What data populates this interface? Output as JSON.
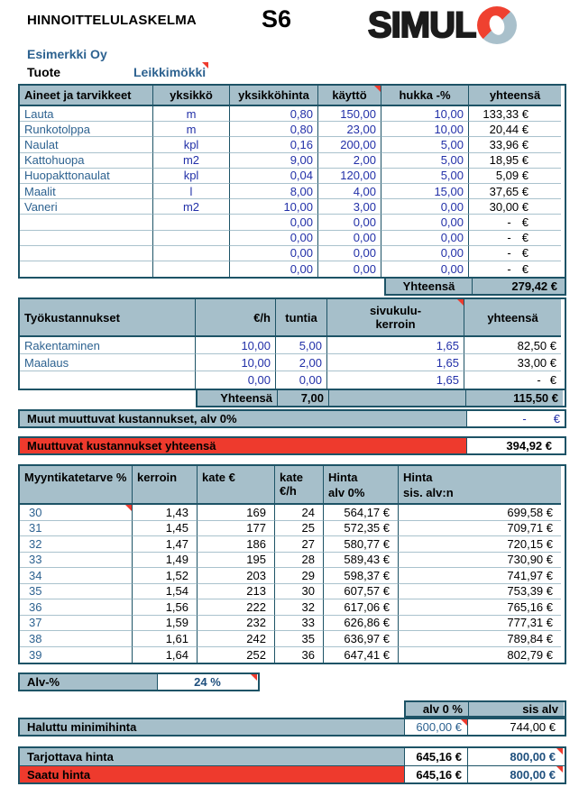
{
  "page": {
    "title": "HINNOITTELULASKELMA",
    "code": "S6"
  },
  "logo": {
    "text": "SIMUL"
  },
  "company": "Esimerkki Oy",
  "product": {
    "label": "Tuote",
    "value": "Leikkimökki"
  },
  "misc": {
    "dash": "-",
    "euro": "€"
  },
  "materials": {
    "headers": [
      "Aineet ja tarvikkeet",
      "yksikkö",
      "yksikköhinta",
      "käyttö",
      "hukka -%",
      "yhteensä"
    ],
    "rows": [
      {
        "name": "Lauta",
        "unit": "m",
        "price": "0,80",
        "usage": "150,00",
        "waste": "10,00",
        "total": "133,33 €"
      },
      {
        "name": "Runkotolppa",
        "unit": "m",
        "price": "0,80",
        "usage": "23,00",
        "waste": "10,00",
        "total": "20,44 €"
      },
      {
        "name": "Naulat",
        "unit": "kpl",
        "price": "0,16",
        "usage": "200,00",
        "waste": "5,00",
        "total": "33,96 €"
      },
      {
        "name": "Kattohuopa",
        "unit": "m2",
        "price": "9,00",
        "usage": "2,00",
        "waste": "5,00",
        "total": "18,95 €"
      },
      {
        "name": "Huopakttonaulat",
        "unit": "kpl",
        "price": "0,04",
        "usage": "120,00",
        "waste": "5,00",
        "total": "5,09 €"
      },
      {
        "name": "Maalit",
        "unit": "l",
        "price": "8,00",
        "usage": "4,00",
        "waste": "15,00",
        "total": "37,65 €"
      },
      {
        "name": "Vaneri",
        "unit": "m2",
        "price": "10,00",
        "usage": "3,00",
        "waste": "0,00",
        "total": "30,00 €"
      },
      {
        "name": "",
        "unit": "",
        "price": "0,00",
        "usage": "0,00",
        "waste": "0,00",
        "total": ""
      },
      {
        "name": "",
        "unit": "",
        "price": "0,00",
        "usage": "0,00",
        "waste": "0,00",
        "total": ""
      },
      {
        "name": "",
        "unit": "",
        "price": "0,00",
        "usage": "0,00",
        "waste": "0,00",
        "total": ""
      },
      {
        "name": "",
        "unit": "",
        "price": "0,00",
        "usage": "0,00",
        "waste": "0,00",
        "total": ""
      }
    ],
    "footer_label": "Yhteensä",
    "footer_total": "279,42 €"
  },
  "labor": {
    "headers": [
      "Työkustannukset",
      "€/h",
      "tuntia",
      "sivukulu-kerroin",
      "yhteensä"
    ],
    "rows": [
      {
        "name": "Rakentaminen",
        "rate": "10,00",
        "hours": "5,00",
        "factor": "1,65",
        "total": "82,50 €"
      },
      {
        "name": "Maalaus",
        "rate": "10,00",
        "hours": "2,00",
        "factor": "1,65",
        "total": "33,00 €"
      },
      {
        "name": "",
        "rate": "0,00",
        "hours": "0,00",
        "factor": "1,65",
        "total": ""
      }
    ],
    "footer": {
      "label": "Yhteensä",
      "hours": "7,00",
      "total": "115,50 €"
    }
  },
  "other_costs": {
    "label": "Muut muuttuvat kustannukset, alv 0%"
  },
  "variable_total": {
    "label": "Muuttuvat kustannukset yhteensä",
    "value": "394,92 €"
  },
  "margins": {
    "headers": [
      "Myyntikatetarve %",
      "kerroin",
      "kate €",
      "kate €/h"
    ],
    "price_headers": [
      {
        "l1": "Hinta",
        "l2": "alv 0%"
      },
      {
        "l1": "Hinta",
        "l2": "sis. alv:n"
      }
    ],
    "rows": [
      {
        "pct": "30",
        "kerroin": "1,43",
        "kate": "169",
        "kate_h": "24",
        "hinta0": "564,17 €",
        "hinta_alv": "699,58 €"
      },
      {
        "pct": "31",
        "kerroin": "1,45",
        "kate": "177",
        "kate_h": "25",
        "hinta0": "572,35 €",
        "hinta_alv": "709,71 €"
      },
      {
        "pct": "32",
        "kerroin": "1,47",
        "kate": "186",
        "kate_h": "27",
        "hinta0": "580,77 €",
        "hinta_alv": "720,15 €"
      },
      {
        "pct": "33",
        "kerroin": "1,49",
        "kate": "195",
        "kate_h": "28",
        "hinta0": "589,43 €",
        "hinta_alv": "730,90 €"
      },
      {
        "pct": "34",
        "kerroin": "1,52",
        "kate": "203",
        "kate_h": "29",
        "hinta0": "598,37 €",
        "hinta_alv": "741,97 €"
      },
      {
        "pct": "35",
        "kerroin": "1,54",
        "kate": "213",
        "kate_h": "30",
        "hinta0": "607,57 €",
        "hinta_alv": "753,39 €"
      },
      {
        "pct": "36",
        "kerroin": "1,56",
        "kate": "222",
        "kate_h": "32",
        "hinta0": "617,06 €",
        "hinta_alv": "765,16 €"
      },
      {
        "pct": "37",
        "kerroin": "1,59",
        "kate": "232",
        "kate_h": "33",
        "hinta0": "626,86 €",
        "hinta_alv": "777,31 €"
      },
      {
        "pct": "38",
        "kerroin": "1,61",
        "kate": "242",
        "kate_h": "35",
        "hinta0": "636,97 €",
        "hinta_alv": "789,84 €"
      },
      {
        "pct": "39",
        "kerroin": "1,64",
        "kate": "252",
        "kate_h": "36",
        "hinta0": "647,41 €",
        "hinta_alv": "802,79 €"
      }
    ]
  },
  "vat": {
    "label": "Alv-%",
    "value": "24 %"
  },
  "summary": {
    "col_headers": [
      "alv 0 %",
      "sis alv"
    ],
    "min_price": {
      "label": "Haluttu minimihinta",
      "alv0": "600,00 €",
      "sis": "744,00 €"
    },
    "offer_price": {
      "label": "Tarjottava hinta",
      "alv0": "645,16 €",
      "sis": "800,00 €"
    },
    "final_price": {
      "label": "Saatu hinta",
      "alv0": "645,16 €",
      "sis": "800,00 €"
    }
  },
  "colors": {
    "header_fill": "#a6bfca",
    "table_border": "#1d5366",
    "accent_red": "#ee3a2d",
    "input_navy": "#2230a8",
    "label_blue": "#2d6290",
    "bold_blue": "#1e4f7d",
    "logo_red": "#ef4130",
    "logo_gray": "#a9c0cb"
  }
}
